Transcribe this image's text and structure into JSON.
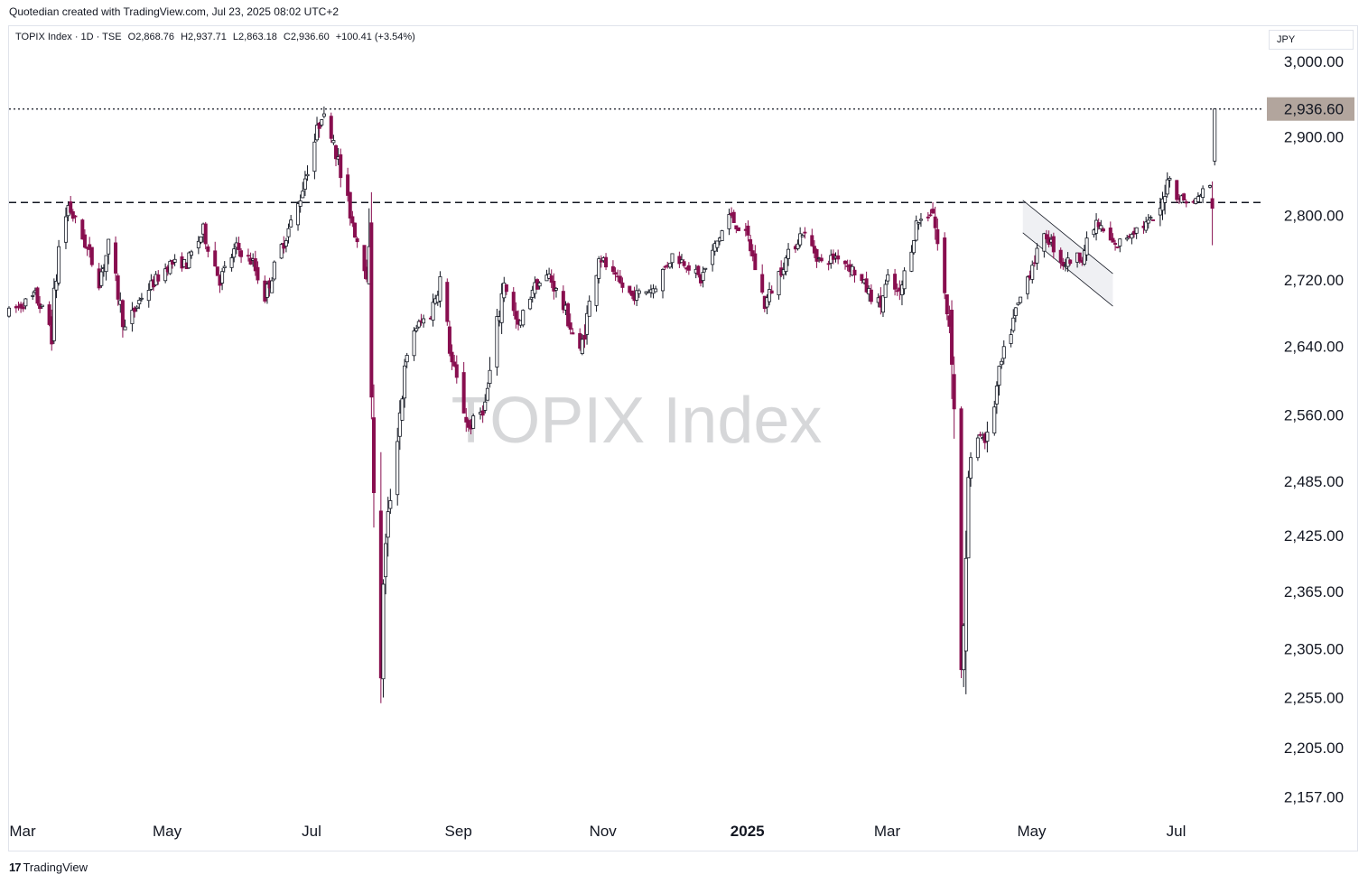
{
  "header": {
    "caption": "Quotedian created with TradingView.com, Jul 23, 2025 08:02 UTC+2"
  },
  "legend": {
    "symbol": "TOPIX Index · 1D · TSE",
    "open": "O2,868.76",
    "high": "H2,937.71",
    "low": "L2,863.18",
    "close": "C2,936.60",
    "change": "+100.41 (+3.54%)"
  },
  "currency": "JPY",
  "footer": {
    "brand": "TradingView",
    "icon": "tradingview-logo-icon"
  },
  "watermark": "TOPIX Index",
  "colors": {
    "up": "#ffffff",
    "down": "#880e4f",
    "outline": "#131722",
    "price_label_bg": "#b2a59d"
  },
  "chart_data": {
    "type": "candlestick",
    "title": "TOPIX Index",
    "y_axis": {
      "scale": "log",
      "range": [
        2130,
        3030
      ],
      "ticks": [
        3000,
        2900,
        2800,
        2720,
        2640,
        2560,
        2485,
        2425,
        2365,
        2305,
        2255,
        2205,
        2157
      ],
      "tick_labels": [
        "3,000.00",
        "2,900.00",
        "2,800.00",
        "2,720.00",
        "2,640.00",
        "2,560.00",
        "2,485.00",
        "2,425.00",
        "2,365.00",
        "2,305.00",
        "2,255.00",
        "2,205.00",
        "2,157.00"
      ]
    },
    "x_axis": {
      "range": [
        "2024-03-01",
        "2025-09-20"
      ],
      "ticks": [
        {
          "label": "Mar",
          "date": "2024-03-01",
          "bold": false
        },
        {
          "label": "May",
          "date": "2024-05-01",
          "bold": false
        },
        {
          "label": "Jul",
          "date": "2024-07-01",
          "bold": false
        },
        {
          "label": "Sep",
          "date": "2024-09-01",
          "bold": false
        },
        {
          "label": "Nov",
          "date": "2024-11-01",
          "bold": false
        },
        {
          "label": "2025",
          "date": "2025-01-01",
          "bold": true
        },
        {
          "label": "Mar",
          "date": "2025-03-01",
          "bold": false
        },
        {
          "label": "May",
          "date": "2025-05-01",
          "bold": false
        },
        {
          "label": "Jul",
          "date": "2025-07-01",
          "bold": false
        }
      ]
    },
    "last_price": 2936.6,
    "last_price_label": "2,936.60",
    "horizontal_lines": [
      {
        "value": 2936.6,
        "style": "dotted"
      },
      {
        "value": 2816,
        "style": "dashed"
      }
    ],
    "channel": {
      "start": [
        "2025-05-03",
        2778
      ],
      "end": [
        "2025-06-10",
        2688
      ],
      "width": 36
    },
    "price_path": [
      [
        "2024-03-01",
        2680
      ],
      [
        "2024-03-12",
        2700
      ],
      [
        "2024-03-19",
        2660
      ],
      [
        "2024-03-22",
        2760
      ],
      [
        "2024-03-26",
        2812
      ],
      [
        "2024-04-02",
        2765
      ],
      [
        "2024-04-08",
        2720
      ],
      [
        "2024-04-12",
        2760
      ],
      [
        "2024-04-19",
        2660
      ],
      [
        "2024-04-26",
        2700
      ],
      [
        "2024-05-08",
        2740
      ],
      [
        "2024-05-15",
        2740
      ],
      [
        "2024-05-22",
        2780
      ],
      [
        "2024-05-29",
        2720
      ],
      [
        "2024-06-05",
        2760
      ],
      [
        "2024-06-12",
        2740
      ],
      [
        "2024-06-17",
        2700
      ],
      [
        "2024-06-24",
        2760
      ],
      [
        "2024-07-01",
        2812
      ],
      [
        "2024-07-05",
        2860
      ],
      [
        "2024-07-11",
        2930
      ],
      [
        "2024-07-16",
        2900
      ],
      [
        "2024-07-19",
        2850
      ],
      [
        "2024-07-25",
        2780
      ],
      [
        "2024-07-31",
        2720
      ],
      [
        "2024-08-02",
        2500
      ],
      [
        "2024-08-05",
        2227
      ],
      [
        "2024-08-06",
        2380
      ],
      [
        "2024-08-09",
        2470
      ],
      [
        "2024-08-15",
        2610
      ],
      [
        "2024-08-19",
        2660
      ],
      [
        "2024-08-26",
        2680
      ],
      [
        "2024-08-30",
        2720
      ],
      [
        "2024-09-04",
        2620
      ],
      [
        "2024-09-11",
        2545
      ],
      [
        "2024-09-18",
        2570
      ],
      [
        "2024-09-26",
        2720
      ],
      [
        "2024-10-02",
        2660
      ],
      [
        "2024-10-08",
        2710
      ],
      [
        "2024-10-15",
        2725
      ],
      [
        "2024-10-22",
        2680
      ],
      [
        "2024-10-28",
        2630
      ],
      [
        "2024-11-05",
        2750
      ],
      [
        "2024-11-12",
        2720
      ],
      [
        "2024-11-19",
        2700
      ],
      [
        "2024-11-28",
        2710
      ],
      [
        "2024-12-06",
        2750
      ],
      [
        "2024-12-12",
        2740
      ],
      [
        "2024-12-18",
        2720
      ],
      [
        "2024-12-24",
        2760
      ],
      [
        "2024-12-30",
        2800
      ],
      [
        "2025-01-07",
        2770
      ],
      [
        "2025-01-14",
        2690
      ],
      [
        "2025-01-22",
        2740
      ],
      [
        "2025-01-30",
        2780
      ],
      [
        "2025-02-07",
        2740
      ],
      [
        "2025-02-14",
        2750
      ],
      [
        "2025-02-21",
        2730
      ],
      [
        "2025-02-28",
        2700
      ],
      [
        "2025-03-04",
        2690
      ],
      [
        "2025-03-07",
        2720
      ],
      [
        "2025-03-12",
        2700
      ],
      [
        "2025-03-19",
        2790
      ],
      [
        "2025-03-26",
        2805
      ],
      [
        "2025-03-31",
        2700
      ],
      [
        "2025-04-03",
        2650
      ],
      [
        "2025-04-07",
        2290
      ],
      [
        "2025-04-09",
        2350
      ],
      [
        "2025-04-10",
        2490
      ],
      [
        "2025-04-14",
        2540
      ],
      [
        "2025-04-18",
        2530
      ],
      [
        "2025-04-24",
        2620
      ],
      [
        "2025-04-30",
        2680
      ],
      [
        "2025-05-07",
        2740
      ],
      [
        "2025-05-13",
        2775
      ],
      [
        "2025-05-20",
        2740
      ],
      [
        "2025-05-28",
        2750
      ],
      [
        "2025-06-03",
        2790
      ],
      [
        "2025-06-11",
        2760
      ],
      [
        "2025-06-18",
        2780
      ],
      [
        "2025-06-25",
        2790
      ],
      [
        "2025-06-30",
        2800
      ],
      [
        "2025-07-03",
        2850
      ],
      [
        "2025-07-08",
        2822
      ],
      [
        "2025-07-14",
        2815
      ],
      [
        "2025-07-18",
        2830
      ],
      [
        "2025-07-22",
        2836
      ],
      [
        "2025-07-23",
        2936.6
      ]
    ]
  }
}
